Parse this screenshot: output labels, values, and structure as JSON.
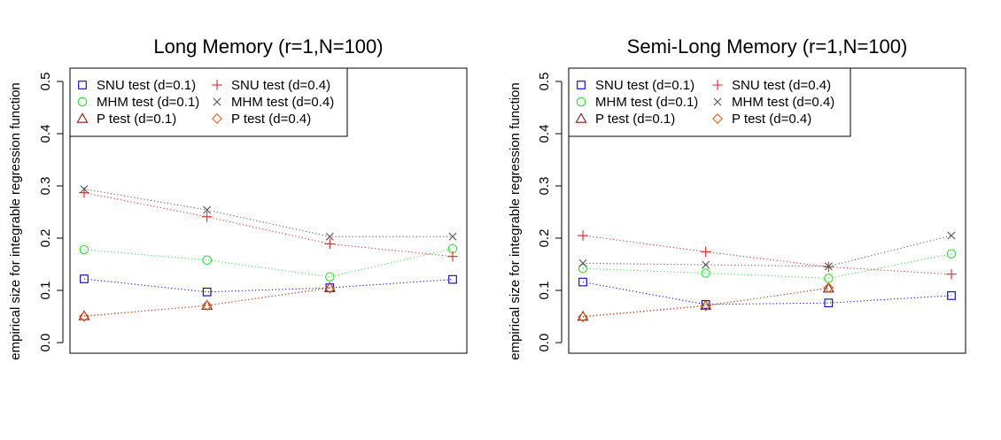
{
  "chart_data": [
    {
      "type": "line",
      "title": "Long Memory (r=1,N=100)",
      "xlabel": "",
      "ylabel": "empirical size for integrable regression function",
      "ylim": [
        0,
        0.5
      ],
      "yticks": [
        "0.0",
        "0.1",
        "0.2",
        "0.3",
        "0.4",
        "0.5"
      ],
      "x": [
        1,
        2,
        3,
        4
      ],
      "legend_position": "top-left",
      "grid": false,
      "series": [
        {
          "name": "SNU test (d=0.1)",
          "color": "#0000cc",
          "marker": "square",
          "values": [
            0.122,
            0.097,
            0.105,
            0.121
          ]
        },
        {
          "name": "MHM test (d=0.1)",
          "color": "#33dd33",
          "marker": "circle",
          "values": [
            0.178,
            0.158,
            0.126,
            0.18
          ]
        },
        {
          "name": "P test (d=0.1)",
          "color": "#8b1a1a",
          "marker": "triangle",
          "values": [
            0.051,
            0.071,
            0.105,
            null
          ]
        },
        {
          "name": "SNU test (d=0.4)",
          "color": "#ee2222",
          "marker": "plus",
          "values": [
            0.287,
            0.241,
            0.189,
            0.165
          ]
        },
        {
          "name": "MHM test (d=0.4)",
          "color": "#555555",
          "marker": "cross",
          "values": [
            0.294,
            0.254,
            0.203,
            0.203
          ]
        },
        {
          "name": "P test (d=0.4)",
          "color": "#e06020",
          "marker": "diamond",
          "values": [
            0.05,
            0.071,
            0.104,
            null
          ]
        }
      ]
    },
    {
      "type": "line",
      "title": "Semi-Long Memory (r=1,N=100)",
      "xlabel": "",
      "ylabel": "empirical size for integrable regression function",
      "ylim": [
        0,
        0.5
      ],
      "yticks": [
        "0.0",
        "0.1",
        "0.2",
        "0.3",
        "0.4",
        "0.5"
      ],
      "x": [
        1,
        2,
        3,
        4
      ],
      "legend_position": "top-left",
      "grid": false,
      "series": [
        {
          "name": "SNU test (d=0.1)",
          "color": "#0000cc",
          "marker": "square",
          "values": [
            0.116,
            0.073,
            0.076,
            0.09
          ]
        },
        {
          "name": "MHM test (d=0.1)",
          "color": "#33dd33",
          "marker": "circle",
          "values": [
            0.142,
            0.133,
            0.123,
            0.17
          ]
        },
        {
          "name": "P test (d=0.1)",
          "color": "#8b1a1a",
          "marker": "triangle",
          "values": [
            0.05,
            0.071,
            0.104,
            null
          ]
        },
        {
          "name": "SNU test (d=0.4)",
          "color": "#ee2222",
          "marker": "plus",
          "values": [
            0.205,
            0.174,
            0.145,
            0.131
          ]
        },
        {
          "name": "MHM test (d=0.4)",
          "color": "#555555",
          "marker": "cross",
          "values": [
            0.152,
            0.149,
            0.146,
            0.205
          ]
        },
        {
          "name": "P test (d=0.4)",
          "color": "#e06020",
          "marker": "diamond",
          "values": [
            0.049,
            0.07,
            0.105,
            null
          ]
        }
      ]
    }
  ]
}
